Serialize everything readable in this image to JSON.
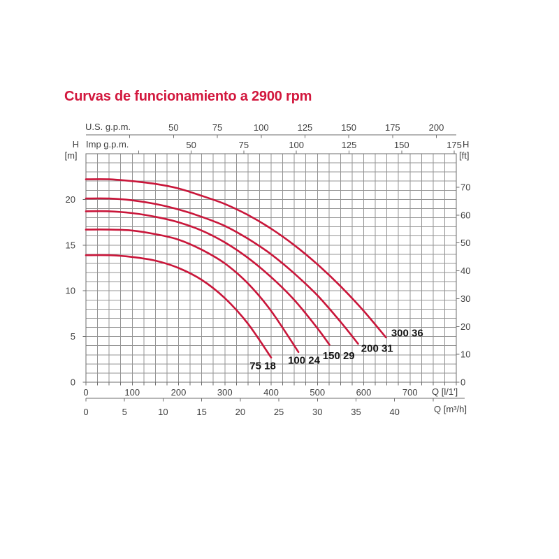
{
  "title": "Curvas de funcionamiento a 2900 rpm",
  "labels": {
    "us_gpm": "U.S. g.p.m.",
    "imp_gpm": "Imp g.p.m.",
    "h_left": "H",
    "m_unit": "[m]",
    "h_right": "H",
    "ft_unit": "[ft]",
    "q_lmin": "Q [l/1']",
    "q_m3h": "Q [m³/h]"
  },
  "colors": {
    "title": "#d2173d",
    "curve": "#c9163a",
    "grid": "#949494",
    "axis": "#6e6e6e",
    "tick_text": "#3f3f3f",
    "curve_label_text": "#141414",
    "background": "#ffffff"
  },
  "chart_data": {
    "type": "line",
    "title": "Curvas de funcionamiento a 2900 rpm",
    "grid": true,
    "x_axes": {
      "flow_l_min": {
        "label": "Q [l/1']",
        "range": [
          0,
          800
        ],
        "grid_step": 25,
        "tick_labels": [
          0,
          100,
          200,
          300,
          400,
          500,
          600,
          700
        ]
      },
      "flow_m3_h": {
        "label": "Q [m³/h]",
        "tick_labels": [
          0,
          5,
          10,
          15,
          20,
          25,
          30,
          35,
          40
        ],
        "tick_step": 5,
        "ticks_from": 0,
        "ticks_to": 45
      },
      "flow_us_gpm": {
        "label": "U.S. g.p.m.",
        "tick_labels": [
          50,
          75,
          100,
          125,
          150,
          175,
          200
        ],
        "tick_step": 25,
        "ticks_from": 25,
        "ticks_to": 200
      },
      "flow_imp_gpm": {
        "label": "Imp g.p.m.",
        "tick_labels": [
          50,
          75,
          100,
          125,
          150,
          175
        ],
        "tick_step": 25,
        "ticks_from": 25,
        "ticks_to": 175
      }
    },
    "y_axes": {
      "head_m": {
        "label": "H [m]",
        "range": [
          0,
          25
        ],
        "grid_step": 1,
        "tick_labels": [
          0,
          5,
          10,
          15,
          20
        ]
      },
      "head_ft": {
        "label": "H [ft]",
        "tick_labels": [
          0,
          10,
          20,
          30,
          40,
          50,
          60,
          70
        ]
      }
    },
    "conversions": {
      "l_min_per_us_gpm": 3.785,
      "l_min_per_imp_gpm": 4.546,
      "l_min_per_m3_h": 16.667,
      "m_per_ft": 0.3048
    },
    "series": [
      {
        "name": "75 18",
        "points": [
          [
            0,
            13.9
          ],
          [
            50,
            13.9
          ],
          [
            100,
            13.7
          ],
          [
            150,
            13.3
          ],
          [
            200,
            12.5
          ],
          [
            250,
            11.2
          ],
          [
            300,
            9.2
          ],
          [
            350,
            6.4
          ],
          [
            400,
            2.7
          ]
        ],
        "label_at": [
          382,
          1.8
        ]
      },
      {
        "name": "100 24",
        "points": [
          [
            0,
            16.7
          ],
          [
            50,
            16.7
          ],
          [
            100,
            16.6
          ],
          [
            150,
            16.2
          ],
          [
            200,
            15.6
          ],
          [
            250,
            14.5
          ],
          [
            300,
            13.0
          ],
          [
            350,
            10.8
          ],
          [
            400,
            7.8
          ],
          [
            459,
            3.3
          ]
        ],
        "label_at": [
          471,
          2.4
        ]
      },
      {
        "name": "150 29",
        "points": [
          [
            0,
            18.7
          ],
          [
            50,
            18.7
          ],
          [
            100,
            18.5
          ],
          [
            150,
            18.1
          ],
          [
            200,
            17.5
          ],
          [
            250,
            16.6
          ],
          [
            300,
            15.3
          ],
          [
            350,
            13.6
          ],
          [
            400,
            11.5
          ],
          [
            450,
            9.0
          ],
          [
            500,
            5.9
          ],
          [
            526,
            4.1
          ]
        ],
        "label_at": [
          546,
          2.9
        ]
      },
      {
        "name": "200 31",
        "points": [
          [
            0,
            20.1
          ],
          [
            50,
            20.1
          ],
          [
            100,
            19.9
          ],
          [
            150,
            19.5
          ],
          [
            200,
            18.9
          ],
          [
            250,
            18.1
          ],
          [
            300,
            17.1
          ],
          [
            350,
            15.7
          ],
          [
            400,
            14.0
          ],
          [
            450,
            11.9
          ],
          [
            500,
            9.5
          ],
          [
            550,
            6.6
          ],
          [
            588,
            4.2
          ]
        ],
        "label_at": [
          629,
          3.7
        ]
      },
      {
        "name": "300 36",
        "points": [
          [
            0,
            22.2
          ],
          [
            50,
            22.2
          ],
          [
            100,
            22.0
          ],
          [
            150,
            21.7
          ],
          [
            200,
            21.2
          ],
          [
            250,
            20.4
          ],
          [
            300,
            19.5
          ],
          [
            350,
            18.3
          ],
          [
            400,
            16.8
          ],
          [
            450,
            15.0
          ],
          [
            500,
            12.9
          ],
          [
            550,
            10.5
          ],
          [
            600,
            7.8
          ],
          [
            648,
            4.9
          ]
        ],
        "label_at": [
          694,
          5.4
        ]
      }
    ]
  }
}
